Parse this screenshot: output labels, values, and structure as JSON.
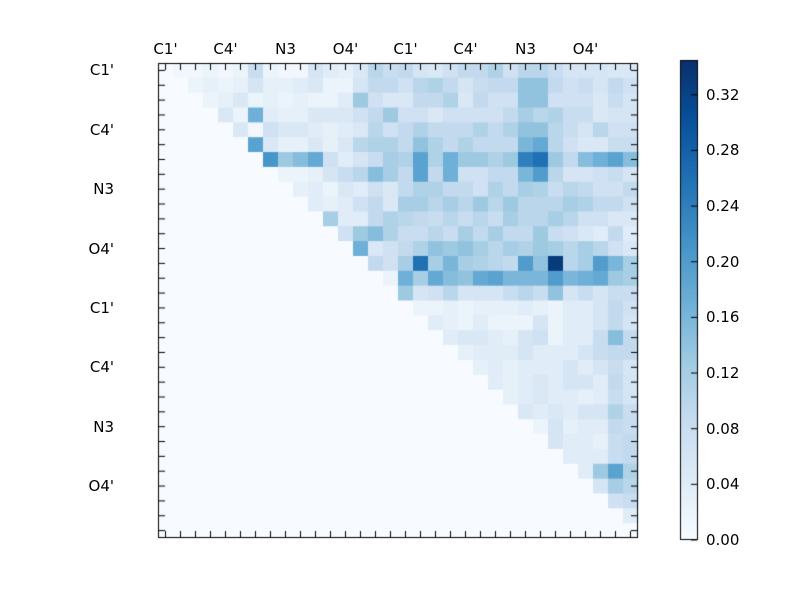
{
  "figure": {
    "background": "#ffffff",
    "title": ""
  },
  "chart_data": {
    "type": "heatmap",
    "description": "Upper-triangular correlation-like heatmap, Blues colormap, atoms labeled every 4th cell on top and left axes",
    "matrix_size": 32,
    "group_labels": [
      "C1'",
      "C4'",
      "N3",
      "O4'",
      "C1'",
      "C4'",
      "N3",
      "O4'"
    ],
    "label_positions": [
      0,
      4,
      8,
      12,
      16,
      20,
      24,
      28
    ],
    "vmin": 0.0,
    "vmax": 0.345,
    "colormap": {
      "name": "Blues",
      "anchors_t": [
        0,
        0.125,
        0.25,
        0.375,
        0.5,
        0.625,
        0.75,
        0.875,
        1.0
      ],
      "anchors_hex": [
        "#f7fbff",
        "#deebf7",
        "#c6dbef",
        "#9ecae1",
        "#6baed6",
        "#4292c6",
        "#2171b5",
        "#08519c",
        "#08306b"
      ]
    },
    "colorbar": {
      "tick_values": [
        0.0,
        0.04,
        0.08,
        0.12,
        0.16,
        0.2,
        0.24,
        0.28,
        0.32
      ],
      "tick_labels": [
        "0.00",
        "0.04",
        "0.08",
        "0.12",
        "0.16",
        "0.20",
        "0.24",
        "0.28",
        "0.32"
      ]
    },
    "matrix": [
      [
        0,
        0.01,
        0.01,
        0.02,
        0.01,
        0.02,
        0.08,
        0.02,
        0.01,
        0.01,
        0.06,
        0.04,
        0.03,
        0.05,
        0.1,
        0.08,
        0.09,
        0.06,
        0.05,
        0.07,
        0.09,
        0.09,
        0.11,
        0.07,
        0.1,
        0.1,
        0.08,
        0.06,
        0.06,
        0.06,
        0.05,
        0.05
      ],
      [
        0,
        0,
        0.02,
        0.03,
        0.02,
        0.03,
        0.06,
        0.03,
        0.03,
        0.04,
        0.05,
        0.02,
        0.02,
        0.06,
        0.09,
        0.09,
        0.07,
        0.1,
        0.11,
        0.09,
        0.06,
        0.08,
        0.09,
        0.09,
        0.14,
        0.14,
        0.09,
        0.07,
        0.08,
        0.06,
        0.09,
        0.07
      ],
      [
        0,
        0,
        0,
        0.02,
        0.03,
        0.05,
        0.02,
        0.03,
        0.02,
        0.03,
        0.02,
        0.02,
        0.04,
        0.13,
        0.07,
        0.05,
        0.05,
        0.09,
        0.09,
        0.11,
        0.05,
        0.09,
        0.07,
        0.07,
        0.14,
        0.14,
        0.07,
        0.07,
        0.07,
        0.05,
        0.08,
        0.06
      ],
      [
        0,
        0,
        0,
        0,
        0.05,
        0.02,
        0.17,
        0.04,
        0.03,
        0.03,
        0.05,
        0.05,
        0.05,
        0.07,
        0.09,
        0.13,
        0.07,
        0.07,
        0.05,
        0.07,
        0.07,
        0.07,
        0.07,
        0.09,
        0.12,
        0.1,
        0.11,
        0.08,
        0.08,
        0.05,
        0.06,
        0.06
      ],
      [
        0,
        0,
        0,
        0,
        0,
        0.05,
        0.01,
        0.07,
        0.05,
        0.05,
        0.04,
        0.03,
        0.04,
        0.05,
        0.1,
        0.07,
        0.09,
        0.11,
        0.09,
        0.09,
        0.09,
        0.11,
        0.09,
        0.11,
        0.14,
        0.14,
        0.1,
        0.08,
        0.06,
        0.1,
        0.07,
        0.07
      ],
      [
        0,
        0,
        0,
        0,
        0,
        0,
        0.19,
        0.05,
        0.03,
        0.03,
        0.05,
        0.03,
        0.05,
        0.1,
        0.11,
        0.11,
        0.09,
        0.14,
        0.11,
        0.09,
        0.11,
        0.09,
        0.09,
        0.09,
        0.16,
        0.18,
        0.1,
        0.07,
        0.05,
        0.05,
        0.08,
        0.08
      ],
      [
        0,
        0,
        0,
        0,
        0,
        0,
        0,
        0.21,
        0.13,
        0.15,
        0.18,
        0.07,
        0.04,
        0.06,
        0.08,
        0.12,
        0.11,
        0.19,
        0.11,
        0.17,
        0.13,
        0.13,
        0.11,
        0.13,
        0.24,
        0.26,
        0.13,
        0.09,
        0.15,
        0.17,
        0.19,
        0.15
      ],
      [
        0,
        0,
        0,
        0,
        0,
        0,
        0,
        0,
        0.02,
        0.02,
        0.03,
        0.06,
        0.08,
        0.1,
        0.15,
        0.12,
        0.09,
        0.19,
        0.09,
        0.17,
        0.07,
        0.07,
        0.09,
        0.09,
        0.16,
        0.2,
        0.1,
        0.06,
        0.06,
        0.07,
        0.08,
        0.06
      ],
      [
        0,
        0,
        0,
        0,
        0,
        0,
        0,
        0,
        0,
        0.03,
        0.04,
        0.02,
        0.05,
        0.04,
        0.07,
        0.05,
        0.09,
        0.11,
        0.11,
        0.09,
        0.09,
        0.07,
        0.11,
        0.09,
        0.12,
        0.11,
        0.08,
        0.1,
        0.09,
        0.07,
        0.07,
        0.09
      ],
      [
        0,
        0,
        0,
        0,
        0,
        0,
        0,
        0,
        0,
        0,
        0.04,
        0.03,
        0.04,
        0.07,
        0.09,
        0.05,
        0.12,
        0.12,
        0.1,
        0.12,
        0.1,
        0.13,
        0.1,
        0.13,
        0.1,
        0.1,
        0.1,
        0.12,
        0.11,
        0.09,
        0.09,
        0.07
      ],
      [
        0,
        0,
        0,
        0,
        0,
        0,
        0,
        0,
        0,
        0,
        0,
        0.12,
        0.04,
        0.04,
        0.09,
        0.11,
        0.1,
        0.09,
        0.08,
        0.1,
        0.08,
        0.1,
        0.08,
        0.12,
        0.1,
        0.1,
        0.12,
        0.1,
        0.07,
        0.07,
        0.05,
        0.05
      ],
      [
        0,
        0,
        0,
        0,
        0,
        0,
        0,
        0,
        0,
        0,
        0,
        0,
        0.07,
        0.13,
        0.15,
        0.11,
        0.08,
        0.08,
        0.1,
        0.08,
        0.12,
        0.09,
        0.12,
        0.09,
        0.09,
        0.13,
        0.08,
        0.07,
        0.05,
        0.04,
        0.09,
        0.04
      ],
      [
        0,
        0,
        0,
        0,
        0,
        0,
        0,
        0,
        0,
        0,
        0,
        0,
        0,
        0.17,
        0.05,
        0.07,
        0.09,
        0.11,
        0.14,
        0.13,
        0.14,
        0.12,
        0.1,
        0.12,
        0.11,
        0.13,
        0.12,
        0.1,
        0.12,
        0.1,
        0.07,
        0.05
      ],
      [
        0,
        0,
        0,
        0,
        0,
        0,
        0,
        0,
        0,
        0,
        0,
        0,
        0,
        0,
        0.09,
        0.07,
        0.12,
        0.26,
        0.12,
        0.16,
        0.12,
        0.11,
        0.1,
        0.09,
        0.2,
        0.14,
        0.33,
        0.1,
        0.12,
        0.2,
        0.16,
        0.12
      ],
      [
        0,
        0,
        0,
        0,
        0,
        0,
        0,
        0,
        0,
        0,
        0,
        0,
        0,
        0,
        0,
        0.02,
        0.17,
        0.12,
        0.18,
        0.15,
        0.14,
        0.18,
        0.19,
        0.16,
        0.16,
        0.16,
        0.2,
        0.16,
        0.17,
        0.18,
        0.13,
        0.12
      ],
      [
        0,
        0,
        0,
        0,
        0,
        0,
        0,
        0,
        0,
        0,
        0,
        0,
        0,
        0,
        0,
        0,
        0.13,
        0.06,
        0.07,
        0.1,
        0.06,
        0.06,
        0.06,
        0.08,
        0.1,
        0.08,
        0.14,
        0.06,
        0.08,
        0.06,
        0.08,
        0.08
      ],
      [
        0,
        0,
        0,
        0,
        0,
        0,
        0,
        0,
        0,
        0,
        0,
        0,
        0,
        0,
        0,
        0,
        0,
        0.02,
        0.02,
        0.03,
        0.02,
        0.03,
        0.03,
        0.03,
        0.04,
        0.03,
        0.02,
        0.04,
        0.04,
        0.06,
        0.09,
        0.07
      ],
      [
        0,
        0,
        0,
        0,
        0,
        0,
        0,
        0,
        0,
        0,
        0,
        0,
        0,
        0,
        0,
        0,
        0,
        0,
        0.04,
        0.03,
        0.02,
        0.04,
        0.02,
        0.02,
        0.02,
        0.06,
        0.02,
        0.04,
        0.04,
        0.06,
        0.09,
        0.06
      ],
      [
        0,
        0,
        0,
        0,
        0,
        0,
        0,
        0,
        0,
        0,
        0,
        0,
        0,
        0,
        0,
        0,
        0,
        0,
        0,
        0.04,
        0.05,
        0.05,
        0.04,
        0.03,
        0.06,
        0.07,
        0.02,
        0.04,
        0.04,
        0.08,
        0.15,
        0.09
      ],
      [
        0,
        0,
        0,
        0,
        0,
        0,
        0,
        0,
        0,
        0,
        0,
        0,
        0,
        0,
        0,
        0,
        0,
        0,
        0,
        0,
        0.03,
        0.04,
        0.04,
        0.04,
        0.06,
        0.04,
        0.04,
        0.04,
        0.06,
        0.08,
        0.09,
        0.09
      ],
      [
        0,
        0,
        0,
        0,
        0,
        0,
        0,
        0,
        0,
        0,
        0,
        0,
        0,
        0,
        0,
        0,
        0,
        0,
        0,
        0,
        0,
        0.03,
        0.04,
        0.03,
        0.04,
        0.04,
        0.04,
        0.06,
        0.04,
        0.06,
        0.08,
        0.06
      ],
      [
        0,
        0,
        0,
        0,
        0,
        0,
        0,
        0,
        0,
        0,
        0,
        0,
        0,
        0,
        0,
        0,
        0,
        0,
        0,
        0,
        0,
        0,
        0.04,
        0.03,
        0.04,
        0.05,
        0.04,
        0.06,
        0.06,
        0.04,
        0.09,
        0.06
      ],
      [
        0,
        0,
        0,
        0,
        0,
        0,
        0,
        0,
        0,
        0,
        0,
        0,
        0,
        0,
        0,
        0,
        0,
        0,
        0,
        0,
        0,
        0,
        0,
        0.03,
        0.04,
        0.05,
        0.04,
        0.04,
        0.03,
        0.04,
        0.08,
        0.06
      ],
      [
        0,
        0,
        0,
        0,
        0,
        0,
        0,
        0,
        0,
        0,
        0,
        0,
        0,
        0,
        0,
        0,
        0,
        0,
        0,
        0,
        0,
        0,
        0,
        0,
        0.05,
        0.04,
        0.05,
        0.04,
        0.06,
        0.06,
        0.11,
        0.08
      ],
      [
        0,
        0,
        0,
        0,
        0,
        0,
        0,
        0,
        0,
        0,
        0,
        0,
        0,
        0,
        0,
        0,
        0,
        0,
        0,
        0,
        0,
        0,
        0,
        0,
        0,
        0.02,
        0.06,
        0.03,
        0.04,
        0.04,
        0.09,
        0.08
      ],
      [
        0,
        0,
        0,
        0,
        0,
        0,
        0,
        0,
        0,
        0,
        0,
        0,
        0,
        0,
        0,
        0,
        0,
        0,
        0,
        0,
        0,
        0,
        0,
        0,
        0,
        0,
        0.06,
        0.04,
        0.04,
        0.03,
        0.08,
        0.09
      ],
      [
        0,
        0,
        0,
        0,
        0,
        0,
        0,
        0,
        0,
        0,
        0,
        0,
        0,
        0,
        0,
        0,
        0,
        0,
        0,
        0,
        0,
        0,
        0,
        0,
        0,
        0,
        0,
        0.04,
        0.04,
        0.04,
        0.08,
        0.09
      ],
      [
        0,
        0,
        0,
        0,
        0,
        0,
        0,
        0,
        0,
        0,
        0,
        0,
        0,
        0,
        0,
        0,
        0,
        0,
        0,
        0,
        0,
        0,
        0,
        0,
        0,
        0,
        0,
        0,
        0.04,
        0.13,
        0.19,
        0.11
      ],
      [
        0,
        0,
        0,
        0,
        0,
        0,
        0,
        0,
        0,
        0,
        0,
        0,
        0,
        0,
        0,
        0,
        0,
        0,
        0,
        0,
        0,
        0,
        0,
        0,
        0,
        0,
        0,
        0,
        0,
        0.06,
        0.12,
        0.1
      ],
      [
        0,
        0,
        0,
        0,
        0,
        0,
        0,
        0,
        0,
        0,
        0,
        0,
        0,
        0,
        0,
        0,
        0,
        0,
        0,
        0,
        0,
        0,
        0,
        0,
        0,
        0,
        0,
        0,
        0,
        0,
        0.07,
        0.08
      ],
      [
        0,
        0,
        0,
        0,
        0,
        0,
        0,
        0,
        0,
        0,
        0,
        0,
        0,
        0,
        0,
        0,
        0,
        0,
        0,
        0,
        0,
        0,
        0,
        0,
        0,
        0,
        0,
        0,
        0,
        0,
        0,
        0.04
      ],
      [
        0,
        0,
        0,
        0,
        0,
        0,
        0,
        0,
        0,
        0,
        0,
        0,
        0,
        0,
        0,
        0,
        0,
        0,
        0,
        0,
        0,
        0,
        0,
        0,
        0,
        0,
        0,
        0,
        0,
        0,
        0,
        0
      ]
    ]
  }
}
